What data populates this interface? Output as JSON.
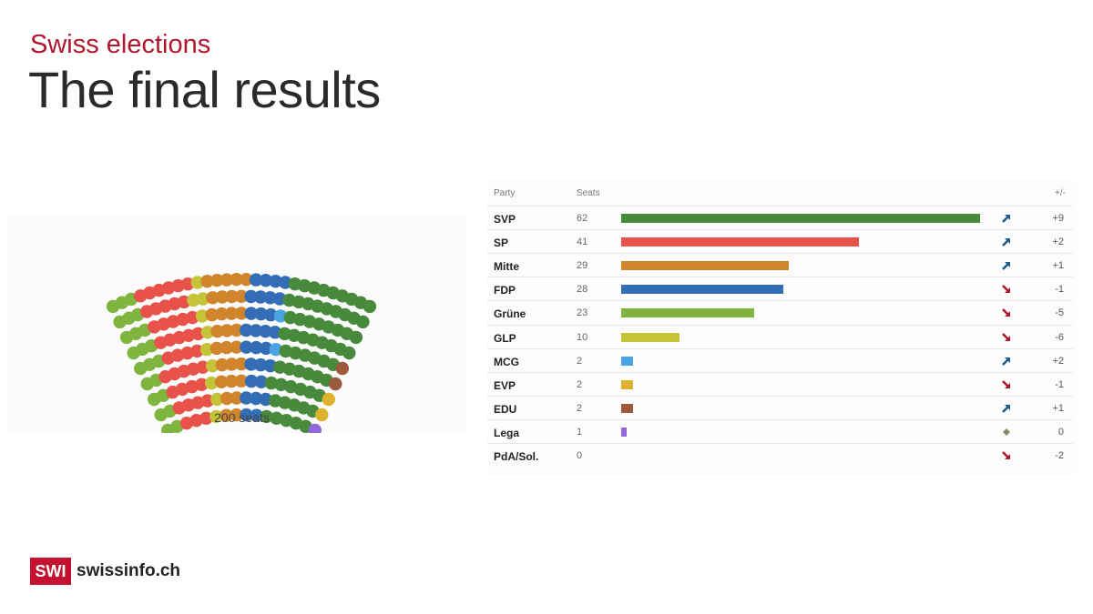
{
  "header": {
    "kicker": "Swiss elections",
    "title": "The final results"
  },
  "table": {
    "col_party": "Party",
    "col_seats": "Seats",
    "col_change": "+/-"
  },
  "chart_data": {
    "type": "table",
    "caption": "200 seats",
    "total_seats": 200,
    "parties": [
      {
        "name": "SVP",
        "seats": 62,
        "change": "+9",
        "trend": "up",
        "color": "#488a3c"
      },
      {
        "name": "SP",
        "seats": 41,
        "change": "+2",
        "trend": "up",
        "color": "#e8524a"
      },
      {
        "name": "Mitte",
        "seats": 29,
        "change": "+1",
        "trend": "up",
        "color": "#d0852d"
      },
      {
        "name": "FDP",
        "seats": 28,
        "change": "-1",
        "trend": "down",
        "color": "#336db5"
      },
      {
        "name": "Grüne",
        "seats": 23,
        "change": "-5",
        "trend": "down",
        "color": "#7fb53f"
      },
      {
        "name": "GLP",
        "seats": 10,
        "change": "-6",
        "trend": "down",
        "color": "#c5c438"
      },
      {
        "name": "MCG",
        "seats": 2,
        "change": "+2",
        "trend": "up",
        "color": "#4aa3e4"
      },
      {
        "name": "EVP",
        "seats": 2,
        "change": "-1",
        "trend": "down",
        "color": "#ddb22f"
      },
      {
        "name": "EDU",
        "seats": 2,
        "change": "+1",
        "trend": "up",
        "color": "#9b5a3b"
      },
      {
        "name": "Lega",
        "seats": 1,
        "change": "0",
        "trend": "same",
        "color": "#9268d8"
      },
      {
        "name": "PdA/Sol.",
        "seats": 0,
        "change": "-2",
        "trend": "down",
        "color": "#888888"
      }
    ],
    "hemicycle_order": [
      "Grüne",
      "SP",
      "GLP",
      "Mitte",
      "FDP",
      "MCG",
      "SVP",
      "EDU",
      "EVP",
      "Lega"
    ]
  },
  "colors": {
    "arrow_up": "#1f5f8a",
    "arrow_down": "#b0172f",
    "arrow_same": "#8a8a6a",
    "brand": "#c3122f"
  },
  "footer": {
    "logo_box": "SWI",
    "logo_text": "swissinfo.ch"
  }
}
